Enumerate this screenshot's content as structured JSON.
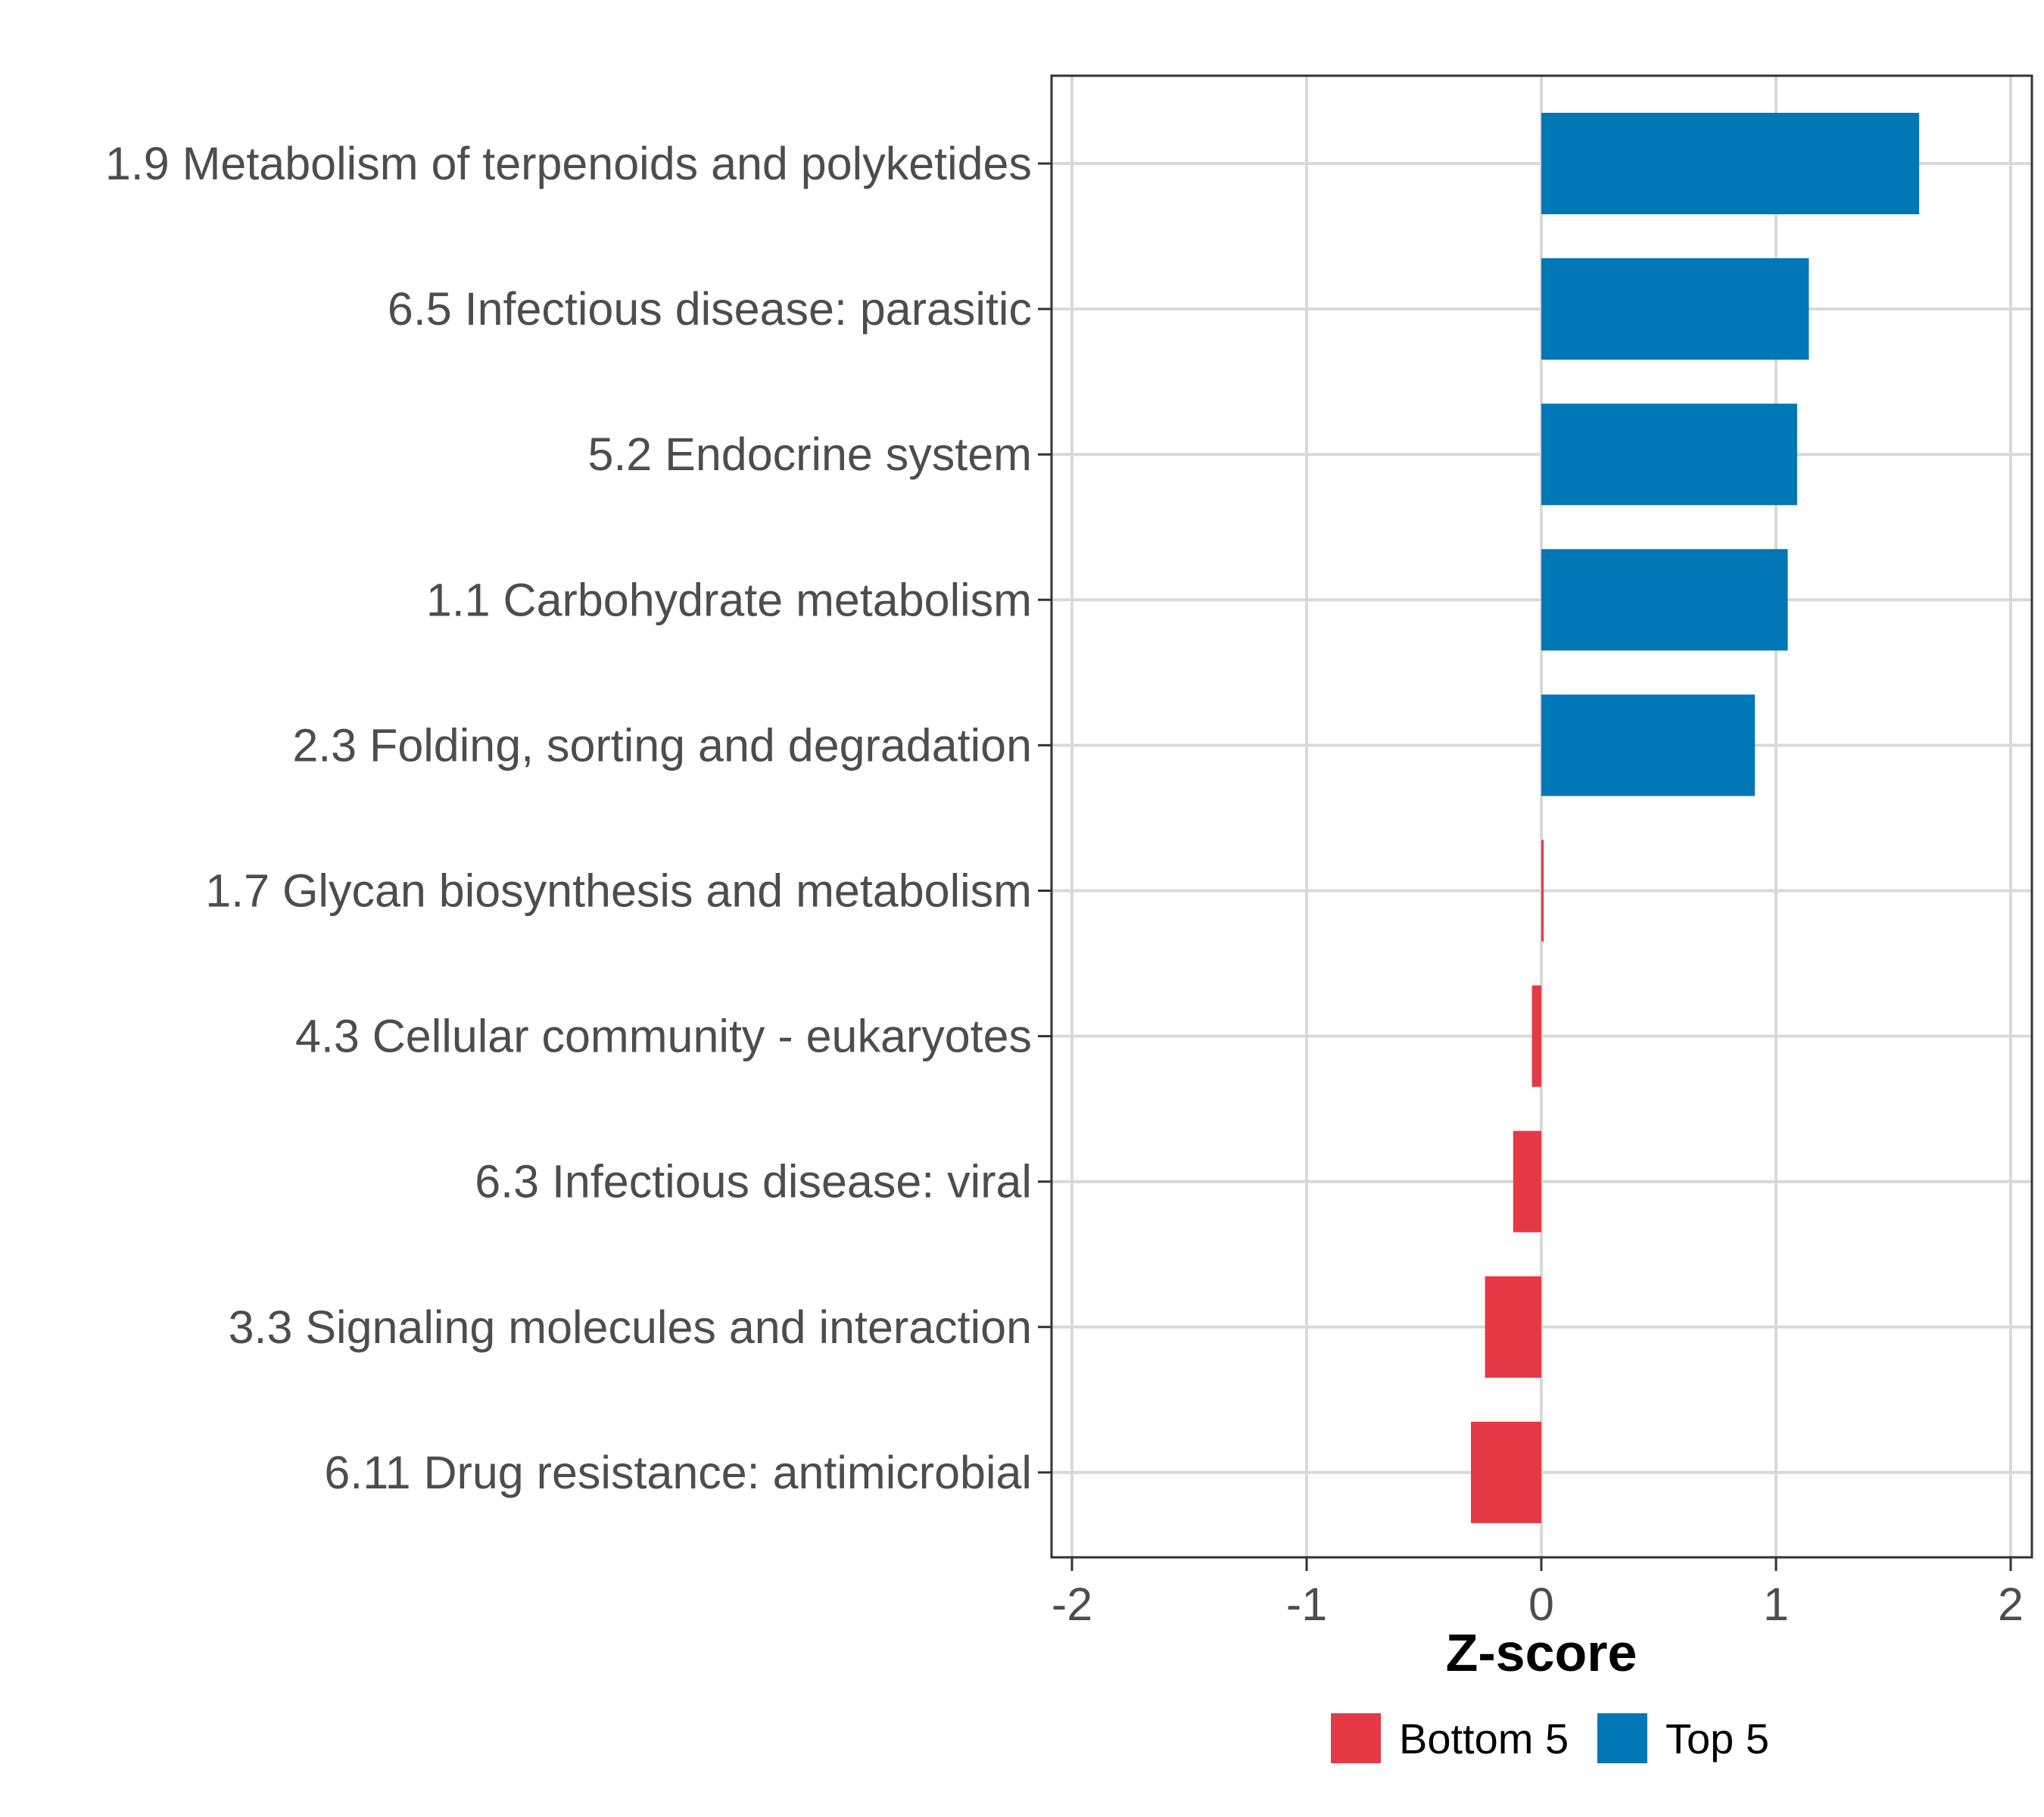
{
  "chart_data": {
    "type": "bar",
    "orientation": "horizontal",
    "title": "",
    "xlabel": "Z-score",
    "ylabel": "",
    "xlim": [
      -2.1,
      2.1
    ],
    "x_ticks": [
      -2,
      -1,
      0,
      1,
      2
    ],
    "x_tick_labels": [
      "-2",
      "-1",
      "0",
      "1",
      "2"
    ],
    "grid": true,
    "legend_position": "bottom",
    "colors": {
      "Bottom 5": "#E63946",
      "Top 5": "#0077B6"
    },
    "legend": [
      {
        "name": "Bottom 5",
        "color": "#E63946"
      },
      {
        "name": "Top 5",
        "color": "#0077B6"
      }
    ],
    "categories": [
      "1.9 Metabolism of terpenoids and polyketides",
      "6.5 Infectious disease: parasitic",
      "5.2 Endocrine system",
      "1.1 Carbohydrate metabolism",
      "2.3 Folding, sorting and degradation",
      "1.7 Glycan biosynthesis and metabolism",
      "4.3 Cellular community - eukaryotes",
      "6.3 Infectious disease: viral",
      "3.3 Signaling molecules and interaction",
      "6.11 Drug resistance: antimicrobial"
    ],
    "values": [
      1.61,
      1.14,
      1.09,
      1.05,
      0.91,
      0.01,
      -0.04,
      -0.12,
      -0.24,
      -0.3
    ],
    "groups": [
      "Top 5",
      "Top 5",
      "Top 5",
      "Top 5",
      "Top 5",
      "Bottom 5",
      "Bottom 5",
      "Bottom 5",
      "Bottom 5",
      "Bottom 5"
    ]
  }
}
